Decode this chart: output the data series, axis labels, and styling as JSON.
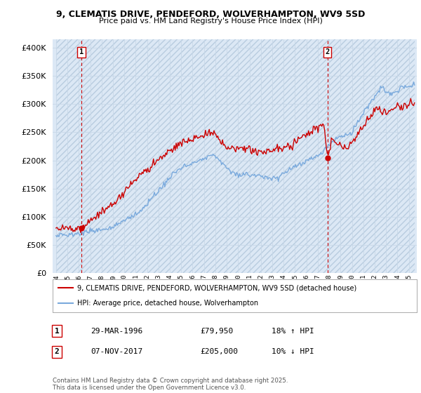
{
  "title1": "9, CLEMATIS DRIVE, PENDEFORD, WOLVERHAMPTON, WV9 5SD",
  "title2": "Price paid vs. HM Land Registry's House Price Index (HPI)",
  "ytick_values": [
    0,
    50000,
    100000,
    150000,
    200000,
    250000,
    300000,
    350000,
    400000
  ],
  "ylim": [
    0,
    415000
  ],
  "xlim_start": 1993.7,
  "xlim_end": 2025.7,
  "marker1_x": 1996.23,
  "marker1_y": 79950,
  "marker2_x": 2017.85,
  "marker2_y": 205000,
  "legend_line1": "9, CLEMATIS DRIVE, PENDEFORD, WOLVERHAMPTON, WV9 5SD (detached house)",
  "legend_line2": "HPI: Average price, detached house, Wolverhampton",
  "table_row1_num": "1",
  "table_row1_date": "29-MAR-1996",
  "table_row1_price": "£79,950",
  "table_row1_hpi": "18% ↑ HPI",
  "table_row2_num": "2",
  "table_row2_date": "07-NOV-2017",
  "table_row2_price": "£205,000",
  "table_row2_hpi": "10% ↓ HPI",
  "footer": "Contains HM Land Registry data © Crown copyright and database right 2025.\nThis data is licensed under the Open Government Licence v3.0.",
  "red_line_color": "#cc0000",
  "blue_line_color": "#7aaadd",
  "bg_plot_color": "#dce8f5",
  "grid_color": "#c8d8e8",
  "dashed_line_color": "#cc0000"
}
